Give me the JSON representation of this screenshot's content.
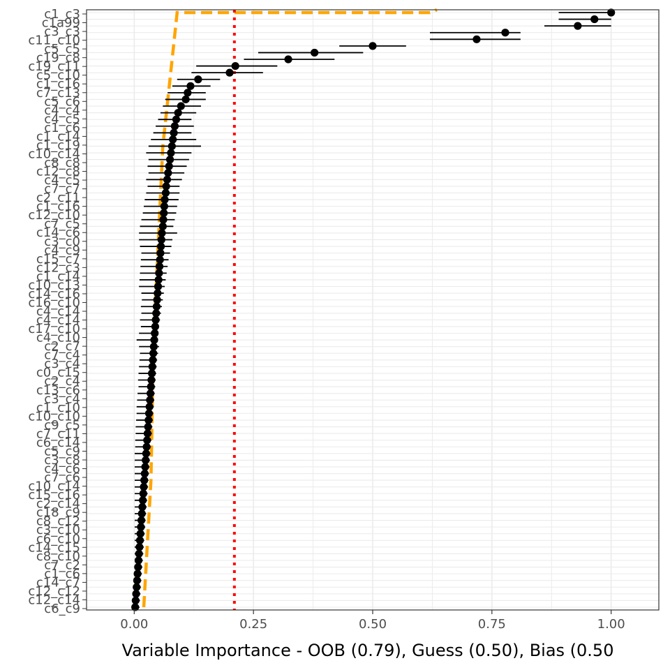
{
  "chart_data": {
    "type": "scatter",
    "xlabel": "Variable Importance - OOB (0.79), Guess (0.50), Bias (0.50",
    "ylabel": "",
    "xlim": [
      -0.1,
      1.1
    ],
    "x_ticks": [
      0.0,
      0.25,
      0.5,
      0.75,
      1.0
    ],
    "x_tick_labels": [
      "0.00",
      "0.25",
      "0.50",
      "0.75",
      "1.00"
    ],
    "grid": true,
    "grid_color": "#ebebeb",
    "panel_border_color": "#333333",
    "point_color": "#000000",
    "threshold": {
      "value": 0.21,
      "color": "#ff0000",
      "style": "dotted"
    },
    "reference_curve": {
      "color": "#ffa500",
      "style": "dashed",
      "points": [
        [
          0.02,
          1
        ],
        [
          0.035,
          20
        ],
        [
          0.04,
          40
        ],
        [
          0.06,
          70
        ],
        [
          0.09,
          100
        ],
        [
          0.13,
          111
        ],
        [
          0.17,
          116
        ],
        [
          0.21,
          120
        ],
        [
          0.28,
          123
        ],
        [
          0.4,
          124
        ],
        [
          0.62,
          125
        ]
      ]
    },
    "visible_y_labels": [
      "c1_c3",
      "c1a99",
      "c3_c3",
      "c11_c10",
      "c5_c5",
      "c19_c8",
      "c19_c11",
      "c5_c10",
      "c1_c16",
      "c7_c13",
      "c5_c6",
      "c4_c4",
      "c4_c5",
      "c1_c6",
      "c1_c14",
      "c1_c19",
      "c10_c14",
      "c8_c8",
      "c12_c8",
      "c4_c5",
      "c7_c7",
      "c2_c11",
      "c1_c16",
      "c12_c10",
      "c7_c5",
      "c14_c6",
      "c3_c0",
      "c4_c9",
      "c15_c7",
      "c12_c3",
      "c1_c14",
      "c10_c13",
      "c14_c16",
      "c16_c10",
      "c4_c14",
      "c4_c14",
      "c17_c10",
      "c4_c10",
      "c2_c7",
      "c7_c4",
      "c3_c4",
      "c0_c15",
      "c2_c4",
      "c13_c6",
      "c3_c4",
      "c1_c10",
      "c10_c10",
      "c9_c5",
      "c7_c11",
      "c6_c14",
      "c5_c9",
      "c3_c8",
      "c4_c6",
      "c7_c6",
      "c10_c14",
      "c15_c16",
      "c2_c14",
      "c18_c9",
      "c8_c12",
      "c3_c10",
      "c6_c10",
      "c14_c15",
      "c8_c10",
      "c7_c2",
      "c1_c6",
      "c14_c7",
      "c12_c12",
      "c12_c14",
      "c6_c9"
    ],
    "series": [
      {
        "name": "",
        "values": [
          1.0,
          0.965,
          0.93,
          0.778,
          0.718,
          0.5,
          0.378,
          0.323,
          0.212,
          0.2,
          0.134,
          0.118,
          0.112,
          0.108,
          0.098,
          0.092,
          0.088,
          0.085,
          0.083,
          0.081,
          0.079,
          0.077,
          0.075,
          0.073,
          0.071,
          0.069,
          0.067,
          0.066,
          0.064,
          0.063,
          0.062,
          0.061,
          0.06,
          0.058,
          0.057,
          0.056,
          0.055,
          0.054,
          0.053,
          0.052,
          0.051,
          0.05,
          0.049,
          0.048,
          0.047,
          0.046,
          0.045,
          0.044,
          0.043,
          0.042,
          0.041,
          0.04,
          0.039,
          0.038,
          0.037,
          0.036,
          0.035,
          0.034,
          0.033,
          0.032,
          0.031,
          0.03,
          0.029,
          0.028,
          0.027,
          0.026,
          0.025,
          0.024,
          0.023,
          0.022,
          0.021,
          0.02,
          0.019,
          0.018,
          0.017,
          0.016,
          0.015,
          0.014,
          0.013,
          0.012,
          0.011,
          0.01,
          0.009,
          0.008,
          0.007,
          0.006,
          0.005,
          0.004,
          0.003,
          0.002
        ],
        "error_low": [
          0.89,
          0.89,
          0.86,
          0.62,
          0.62,
          0.43,
          0.26,
          0.23,
          0.13,
          0.12,
          0.09,
          0.08,
          0.07,
          0.065,
          0.06,
          0.055,
          0.05,
          0.045,
          0.04,
          0.035,
          0.03,
          0.025,
          0.03,
          0.028,
          0.03,
          0.025,
          0.028,
          0.025,
          0.022,
          0.02,
          0.018,
          0.015,
          0.012,
          0.01,
          0.01,
          0.012,
          0.015,
          0.014,
          0.013,
          0.012,
          0.011,
          0.01,
          0.015,
          0.016,
          0.014,
          0.015,
          0.012,
          0.014,
          0.01,
          0.005,
          0.01,
          0.012,
          0.011,
          0.01,
          0.009,
          0.008,
          0.009,
          0.007,
          0.006,
          0.005,
          0.005,
          0.004,
          0.003,
          0.003,
          0.002,
          0.002,
          0.001,
          0.001,
          0.001,
          0.001,
          0.001,
          0.001,
          0.001,
          0.001,
          0.001,
          0.001,
          0.001,
          0.001,
          0.001,
          0.001,
          0.001,
          0.001,
          0.001,
          0.001,
          0.001,
          0.001,
          0.001,
          0.001,
          0.001,
          0.001
        ],
        "error_high": [
          1.0,
          1.0,
          1.0,
          0.81,
          0.81,
          0.57,
          0.48,
          0.42,
          0.3,
          0.27,
          0.18,
          0.16,
          0.15,
          0.15,
          0.14,
          0.13,
          0.12,
          0.125,
          0.12,
          0.13,
          0.14,
          0.12,
          0.115,
          0.11,
          0.105,
          0.1,
          0.095,
          0.095,
          0.093,
          0.09,
          0.088,
          0.085,
          0.082,
          0.09,
          0.08,
          0.078,
          0.075,
          0.072,
          0.07,
          0.068,
          0.066,
          0.064,
          0.062,
          0.06,
          0.058,
          0.056,
          0.054,
          0.052,
          0.05,
          0.05,
          0.052,
          0.05,
          0.048,
          0.047,
          0.046,
          0.045,
          0.044,
          0.043,
          0.042,
          0.041,
          0.04,
          0.039,
          0.038,
          0.037,
          0.036,
          0.035,
          0.034,
          0.033,
          0.032,
          0.031,
          0.03,
          0.029,
          0.028,
          0.027,
          0.026,
          0.025,
          0.024,
          0.023,
          0.022,
          0.021,
          0.02,
          0.019,
          0.018,
          0.017,
          0.016,
          0.015,
          0.014,
          0.013,
          0.012,
          0.011
        ]
      }
    ]
  }
}
